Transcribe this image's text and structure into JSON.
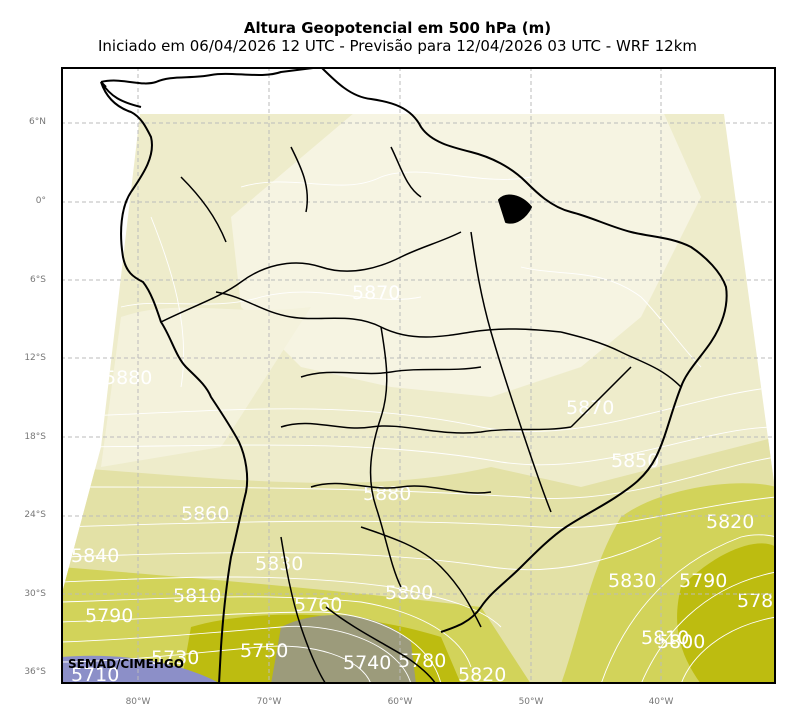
{
  "title": "Altura Geopotencial em 500 hPa (m)",
  "subtitle": "Iniciado em 06/04/2026 12 UTC - Previsão para 12/04/2026 03 UTC - WRF 12km",
  "credit": "SEMAD/CIMEHGO",
  "lat_ticks": [
    "6°N",
    "0°",
    "6°S",
    "12°S",
    "18°S",
    "24°S",
    "30°S",
    "36°S"
  ],
  "lon_ticks": [
    "80°W",
    "70°W",
    "60°W",
    "50°W",
    "40°W"
  ],
  "contour_labels": [
    {
      "text": "5870"
    },
    {
      "text": "5880"
    },
    {
      "text": "5870"
    },
    {
      "text": "5850"
    },
    {
      "text": "5880"
    },
    {
      "text": "5860"
    },
    {
      "text": "5820"
    },
    {
      "text": "5840"
    },
    {
      "text": "5830"
    },
    {
      "text": "5830"
    },
    {
      "text": "5790"
    },
    {
      "text": "5810"
    },
    {
      "text": "5760"
    },
    {
      "text": "5800"
    },
    {
      "text": "5790"
    },
    {
      "text": "578"
    },
    {
      "text": "5810"
    },
    {
      "text": "5800"
    },
    {
      "text": "5750"
    },
    {
      "text": "5730"
    },
    {
      "text": "5740"
    },
    {
      "text": "5780"
    },
    {
      "text": "5820"
    },
    {
      "text": "5710"
    }
  ],
  "colors": {
    "highest": "#f6f4e2",
    "high": "#eeeccb",
    "mid": "#e3e1a6",
    "low": "#d2d35a",
    "lower": "#bdbc10",
    "trough": "#9c9b7b",
    "lowest": "#8c8fc8",
    "grid": "#bbbbbb",
    "coast": "#000000",
    "contour": "#ffffff"
  }
}
